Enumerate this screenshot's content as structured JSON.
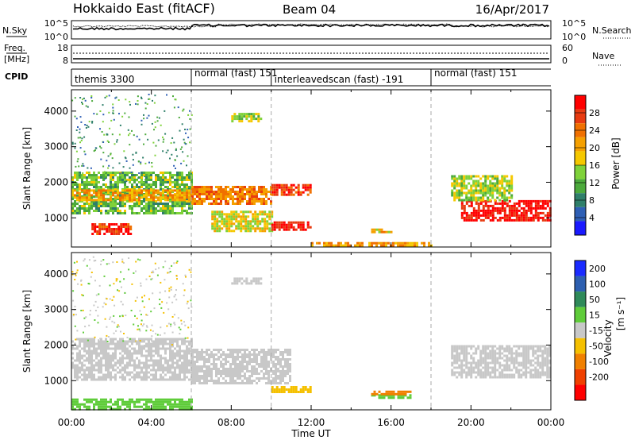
{
  "header": {
    "station": "Hokkaido East (fitACF)",
    "beam": "Beam 04",
    "date": "16/Apr/2017"
  },
  "top_panel": {
    "left_label": "N.Sky",
    "left_ticks": [
      "10^5",
      "10^0"
    ],
    "right_label": "N.Search",
    "right_ticks": [
      "10^5",
      "10^0"
    ]
  },
  "freq_panel": {
    "left_label_1": "Freq.",
    "left_label_2": "[MHz]",
    "left_ticks": [
      "18",
      "8"
    ],
    "right_label": "Nave",
    "right_ticks": [
      "60",
      "0"
    ]
  },
  "cpid": {
    "label": "CPID",
    "segments": [
      {
        "name": "themis 3300",
        "start_hour": 0
      },
      {
        "name": "normal (fast) 151",
        "start_hour": 6
      },
      {
        "name": "interleavedscan (fast) -191",
        "start_hour": 10
      },
      {
        "name": "normal (fast) 151",
        "start_hour": 18
      }
    ]
  },
  "x_axis": {
    "label": "Time UT",
    "ticks": [
      "00:00",
      "04:00",
      "08:00",
      "12:00",
      "16:00",
      "20:00",
      "00:00"
    ],
    "range_hours": [
      0,
      24
    ]
  },
  "y_axis": {
    "label": "Slant Range [km]",
    "ticks": [
      "1000",
      "2000",
      "3000",
      "4000"
    ]
  },
  "power_colorbar": {
    "label": "Power [dB]",
    "ticks": [
      "4",
      "8",
      "12",
      "16",
      "20",
      "24",
      "28"
    ],
    "colors": [
      "#1a1aff",
      "#2e5fb5",
      "#2f7f6a",
      "#4caa3c",
      "#7fd23a",
      "#f5c800",
      "#f5a000",
      "#f07000",
      "#e83a10",
      "#ff0000"
    ]
  },
  "velocity_colorbar": {
    "label_1": "Velocity",
    "label_2": "[m s⁻¹]",
    "ticks": [
      "200",
      "100",
      "50",
      "15",
      "-15",
      "-50",
      "-100",
      "-200"
    ],
    "colors": [
      "#1a2bff",
      "#2d5fb0",
      "#2f8a5a",
      "#5fcc3a",
      "#c8c8c8",
      "#f5c000",
      "#f08000",
      "#f04000",
      "#ff0000"
    ]
  },
  "chart_data": {
    "type": "heatmap",
    "title": "Hokkaido East (fitACF)",
    "xlabel": "Time UT",
    "ylabel": "Slant Range [km]",
    "xlim": [
      0,
      24
    ],
    "ylim": [
      180,
      4600
    ],
    "panels": [
      {
        "name": "Power",
        "unit": "dB",
        "regions": [
          {
            "t0": 0.0,
            "t1": 6.0,
            "r0": 1100,
            "r1": 2300,
            "value": 12
          },
          {
            "t0": 0.0,
            "t1": 6.0,
            "r0": 1500,
            "r1": 1800,
            "value": 20
          },
          {
            "t0": 1.0,
            "t1": 3.0,
            "r0": 550,
            "r1": 850,
            "value": 26
          },
          {
            "t0": 6.0,
            "t1": 10.0,
            "r0": 1400,
            "r1": 1900,
            "value": 22
          },
          {
            "t0": 7.0,
            "t1": 10.0,
            "r0": 650,
            "r1": 1200,
            "value": 16
          },
          {
            "t0": 8.0,
            "t1": 9.5,
            "r0": 3700,
            "r1": 3950,
            "value": 14
          },
          {
            "t0": 10.0,
            "t1": 12.0,
            "r0": 1650,
            "r1": 1950,
            "value": 26
          },
          {
            "t0": 10.0,
            "t1": 12.0,
            "r0": 650,
            "r1": 900,
            "value": 28
          },
          {
            "t0": 12.0,
            "t1": 18.0,
            "r0": 250,
            "r1": 320,
            "value": 20
          },
          {
            "t0": 15.0,
            "t1": 16.0,
            "r0": 620,
            "r1": 700,
            "value": 18
          },
          {
            "t0": 19.5,
            "t1": 24.0,
            "r0": 900,
            "r1": 1500,
            "value": 28
          },
          {
            "t0": 19.0,
            "t1": 22.0,
            "r0": 1500,
            "r1": 2200,
            "value": 14
          }
        ]
      },
      {
        "name": "Velocity",
        "unit": "m s⁻¹",
        "regions": [
          {
            "t0": 0.0,
            "t1": 6.0,
            "r0": 1000,
            "r1": 2200,
            "value": 0
          },
          {
            "t0": 6.0,
            "t1": 11.0,
            "r0": 900,
            "r1": 1900,
            "value": 0
          },
          {
            "t0": 8.0,
            "t1": 9.5,
            "r0": 3750,
            "r1": 3900,
            "value": 0
          },
          {
            "t0": 10.0,
            "t1": 12.0,
            "r0": 650,
            "r1": 850,
            "value": -40
          },
          {
            "t0": 15.0,
            "t1": 17.0,
            "r0": 500,
            "r1": 620,
            "value": 30
          },
          {
            "t0": 15.0,
            "t1": 17.0,
            "r0": 640,
            "r1": 720,
            "value": -60
          },
          {
            "t0": 19.0,
            "t1": 24.0,
            "r0": 1100,
            "r1": 2000,
            "value": 0
          },
          {
            "t0": 0.0,
            "t1": 6.0,
            "r0": 200,
            "r1": 500,
            "value": 30
          }
        ]
      }
    ]
  }
}
